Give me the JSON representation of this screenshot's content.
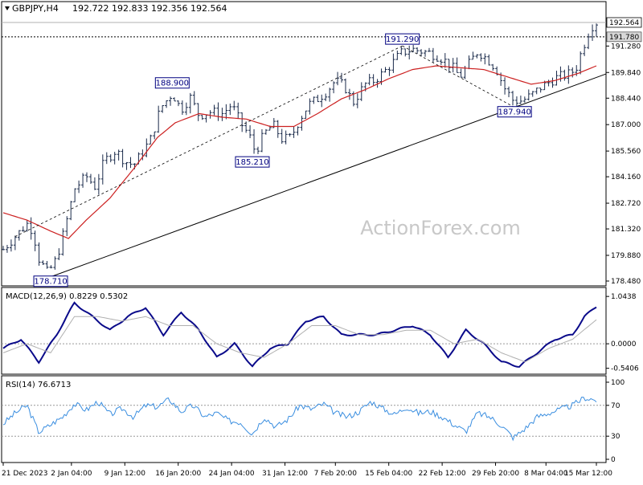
{
  "header": {
    "symbol": "GBPJPY,H4",
    "ohlc": "192.722 192.833 192.356 192.564"
  },
  "watermark": "ActionForex.com",
  "colors": {
    "bar": "#1a2a4a",
    "ma": "#cc2020",
    "macd": "#0a0a8a",
    "signal": "#b0b0b0",
    "rsi": "#3a8ee0",
    "price_tag_bg": "#ffffff",
    "level_tag_bg": "#d8d8d8"
  },
  "chart_data": [
    {
      "type": "candlestick",
      "title": "GBPJPY,H4",
      "ylim": [
        178.48,
        193.35
      ],
      "yticks": [
        {
          "value": 191.28,
          "label": "191.280"
        },
        {
          "value": 189.84,
          "label": "189.840"
        },
        {
          "value": 188.44,
          "label": "188.440"
        },
        {
          "value": 187.0,
          "label": "187.000"
        },
        {
          "value": 185.56,
          "label": "185.560"
        },
        {
          "value": 184.16,
          "label": "184.160"
        },
        {
          "value": 182.72,
          "label": "182.720"
        },
        {
          "value": 181.32,
          "label": "181.320"
        },
        {
          "value": 179.88,
          "label": "179.880"
        },
        {
          "value": 178.48,
          "label": "178.480"
        }
      ],
      "last_price": {
        "value": 192.564,
        "label": "192.564"
      },
      "resistance": {
        "value": 191.78,
        "label": "191.780"
      },
      "annotations": [
        {
          "label": "191.290",
          "value": 191.29,
          "index": 0.673
        },
        {
          "label": "188.900",
          "value": 188.9,
          "index": 0.285
        },
        {
          "label": "185.210",
          "value": 185.21,
          "index": 0.42
        },
        {
          "label": "187.940",
          "value": 187.94,
          "index": 0.862
        },
        {
          "label": "178.710",
          "value": 178.71,
          "index": 0.08
        }
      ],
      "close_path": [
        [
          0,
          180.2
        ],
        [
          0.02,
          180.9
        ],
        [
          0.04,
          181.6
        ],
        [
          0.05,
          181.2
        ],
        [
          0.06,
          179.7
        ],
        [
          0.075,
          178.9
        ],
        [
          0.09,
          179.7
        ],
        [
          0.105,
          181.5
        ],
        [
          0.12,
          183.5
        ],
        [
          0.14,
          184.2
        ],
        [
          0.155,
          183.6
        ],
        [
          0.17,
          185.0
        ],
        [
          0.19,
          185.6
        ],
        [
          0.205,
          185.0
        ],
        [
          0.22,
          184.8
        ],
        [
          0.235,
          185.5
        ],
        [
          0.25,
          186.3
        ],
        [
          0.265,
          187.9
        ],
        [
          0.285,
          188.7
        ],
        [
          0.3,
          187.8
        ],
        [
          0.315,
          188.5
        ],
        [
          0.33,
          187.5
        ],
        [
          0.35,
          187.7
        ],
        [
          0.37,
          187.6
        ],
        [
          0.385,
          188.1
        ],
        [
          0.4,
          187.1
        ],
        [
          0.415,
          186.4
        ],
        [
          0.425,
          185.5
        ],
        [
          0.44,
          186.5
        ],
        [
          0.455,
          187.0
        ],
        [
          0.47,
          186.2
        ],
        [
          0.485,
          186.3
        ],
        [
          0.5,
          187.3
        ],
        [
          0.515,
          188.1
        ],
        [
          0.53,
          188.4
        ],
        [
          0.545,
          188.8
        ],
        [
          0.56,
          189.4
        ],
        [
          0.575,
          189.1
        ],
        [
          0.59,
          188.2
        ],
        [
          0.61,
          189.2
        ],
        [
          0.625,
          189.4
        ],
        [
          0.64,
          189.8
        ],
        [
          0.655,
          190.3
        ],
        [
          0.67,
          190.9
        ],
        [
          0.69,
          191.1
        ],
        [
          0.705,
          191.0
        ],
        [
          0.72,
          190.9
        ],
        [
          0.74,
          190.6
        ],
        [
          0.755,
          190.2
        ],
        [
          0.77,
          189.6
        ],
        [
          0.785,
          190.3
        ],
        [
          0.8,
          191.0
        ],
        [
          0.815,
          190.6
        ],
        [
          0.83,
          190.1
        ],
        [
          0.845,
          189.0
        ],
        [
          0.86,
          188.3
        ],
        [
          0.875,
          188.3
        ],
        [
          0.89,
          188.6
        ],
        [
          0.905,
          189.0
        ],
        [
          0.92,
          189.3
        ],
        [
          0.935,
          189.6
        ],
        [
          0.95,
          189.7
        ],
        [
          0.965,
          190.0
        ],
        [
          0.975,
          191.0
        ],
        [
          0.99,
          192.3
        ],
        [
          1.0,
          192.564
        ]
      ],
      "ma_path": [
        [
          0,
          182.2
        ],
        [
          0.04,
          181.8
        ],
        [
          0.08,
          181.2
        ],
        [
          0.11,
          180.8
        ],
        [
          0.14,
          181.8
        ],
        [
          0.18,
          183.0
        ],
        [
          0.22,
          184.6
        ],
        [
          0.26,
          186.3
        ],
        [
          0.29,
          187.1
        ],
        [
          0.33,
          187.6
        ],
        [
          0.37,
          187.4
        ],
        [
          0.41,
          187.3
        ],
        [
          0.45,
          186.9
        ],
        [
          0.49,
          186.9
        ],
        [
          0.53,
          187.6
        ],
        [
          0.57,
          188.4
        ],
        [
          0.61,
          188.9
        ],
        [
          0.65,
          189.5
        ],
        [
          0.69,
          190.0
        ],
        [
          0.73,
          190.2
        ],
        [
          0.77,
          190.1
        ],
        [
          0.81,
          190.0
        ],
        [
          0.85,
          189.6
        ],
        [
          0.89,
          189.2
        ],
        [
          0.93,
          189.4
        ],
        [
          0.97,
          189.8
        ],
        [
          1.0,
          190.2
        ]
      ],
      "x_axis": {
        "labels": [
          {
            "label": "21 Dec 2023",
            "index": 0.0
          },
          {
            "label": "2 Jan 04:00",
            "index": 0.115
          },
          {
            "label": "9 Jan 12:00",
            "index": 0.205
          },
          {
            "label": "16 Jan 20:00",
            "index": 0.295
          },
          {
            "label": "24 Jan 04:00",
            "index": 0.385
          },
          {
            "label": "31 Jan 12:00",
            "index": 0.475
          },
          {
            "label": "7 Feb 20:00",
            "index": 0.56
          },
          {
            "label": "15 Feb 04:00",
            "index": 0.65
          },
          {
            "label": "22 Feb 12:00",
            "index": 0.74
          },
          {
            "label": "29 Feb 20:00",
            "index": 0.83
          },
          {
            "label": "8 Mar 04:00",
            "index": 0.915
          },
          {
            "label": "15 Mar 12:00",
            "index": 1.0
          }
        ]
      }
    },
    {
      "type": "line",
      "title": "MACD(12,26,9) 0.8229 0.5302",
      "ylim": [
        -0.6,
        1.1
      ],
      "yticks": [
        {
          "value": 1.0438,
          "label": "1.0438"
        },
        {
          "value": 0.0,
          "label": "0.0000"
        },
        {
          "value": -0.5406,
          "label": "-0.5406"
        }
      ],
      "series": [
        {
          "key": "macd",
          "values": [
            [
              0,
              -0.1
            ],
            [
              0.03,
              0.1
            ],
            [
              0.06,
              -0.4
            ],
            [
              0.09,
              0.2
            ],
            [
              0.12,
              0.9
            ],
            [
              0.15,
              0.6
            ],
            [
              0.18,
              0.3
            ],
            [
              0.21,
              0.6
            ],
            [
              0.24,
              0.8
            ],
            [
              0.27,
              0.2
            ],
            [
              0.3,
              0.7
            ],
            [
              0.33,
              0.3
            ],
            [
              0.36,
              -0.3
            ],
            [
              0.39,
              0.0
            ],
            [
              0.42,
              -0.5
            ],
            [
              0.45,
              -0.1
            ],
            [
              0.48,
              0.0
            ],
            [
              0.51,
              0.5
            ],
            [
              0.54,
              0.6
            ],
            [
              0.57,
              0.2
            ],
            [
              0.6,
              0.2
            ],
            [
              0.63,
              0.2
            ],
            [
              0.66,
              0.3
            ],
            [
              0.69,
              0.4
            ],
            [
              0.72,
              0.2
            ],
            [
              0.75,
              -0.3
            ],
            [
              0.78,
              0.3
            ],
            [
              0.81,
              0.0
            ],
            [
              0.84,
              -0.4
            ],
            [
              0.87,
              -0.5
            ],
            [
              0.9,
              -0.2
            ],
            [
              0.93,
              0.1
            ],
            [
              0.96,
              0.2
            ],
            [
              0.98,
              0.6
            ],
            [
              1.0,
              0.8229
            ]
          ]
        },
        {
          "key": "signal",
          "values": [
            [
              0,
              -0.2
            ],
            [
              0.04,
              0.0
            ],
            [
              0.08,
              -0.2
            ],
            [
              0.12,
              0.6
            ],
            [
              0.16,
              0.6
            ],
            [
              0.2,
              0.5
            ],
            [
              0.24,
              0.6
            ],
            [
              0.28,
              0.4
            ],
            [
              0.32,
              0.4
            ],
            [
              0.36,
              0.0
            ],
            [
              0.4,
              -0.2
            ],
            [
              0.44,
              -0.3
            ],
            [
              0.48,
              0.0
            ],
            [
              0.52,
              0.4
            ],
            [
              0.56,
              0.4
            ],
            [
              0.6,
              0.2
            ],
            [
              0.64,
              0.2
            ],
            [
              0.68,
              0.3
            ],
            [
              0.72,
              0.3
            ],
            [
              0.76,
              0.0
            ],
            [
              0.8,
              0.1
            ],
            [
              0.84,
              -0.2
            ],
            [
              0.88,
              -0.4
            ],
            [
              0.92,
              -0.1
            ],
            [
              0.96,
              0.1
            ],
            [
              1.0,
              0.5302
            ]
          ]
        }
      ]
    },
    {
      "type": "line",
      "title": "RSI(14) 76.6713",
      "ylim": [
        0,
        100
      ],
      "yticks": [
        {
          "value": 100,
          "label": "100"
        },
        {
          "value": 70,
          "label": "70"
        },
        {
          "value": 30,
          "label": "30"
        },
        {
          "value": 0,
          "label": "0"
        }
      ],
      "series": [
        {
          "key": "rsi",
          "values": [
            [
              0,
              46
            ],
            [
              0.02,
              60
            ],
            [
              0.04,
              70
            ],
            [
              0.06,
              35
            ],
            [
              0.08,
              45
            ],
            [
              0.1,
              55
            ],
            [
              0.12,
              72
            ],
            [
              0.14,
              64
            ],
            [
              0.16,
              75
            ],
            [
              0.18,
              58
            ],
            [
              0.2,
              66
            ],
            [
              0.22,
              55
            ],
            [
              0.24,
              70
            ],
            [
              0.26,
              68
            ],
            [
              0.28,
              78
            ],
            [
              0.3,
              62
            ],
            [
              0.32,
              70
            ],
            [
              0.34,
              55
            ],
            [
              0.36,
              60
            ],
            [
              0.38,
              50
            ],
            [
              0.4,
              48
            ],
            [
              0.42,
              33
            ],
            [
              0.44,
              55
            ],
            [
              0.46,
              42
            ],
            [
              0.48,
              52
            ],
            [
              0.5,
              70
            ],
            [
              0.52,
              65
            ],
            [
              0.54,
              72
            ],
            [
              0.56,
              60
            ],
            [
              0.58,
              55
            ],
            [
              0.6,
              62
            ],
            [
              0.62,
              75
            ],
            [
              0.64,
              66
            ],
            [
              0.66,
              58
            ],
            [
              0.68,
              68
            ],
            [
              0.7,
              60
            ],
            [
              0.72,
              62
            ],
            [
              0.74,
              55
            ],
            [
              0.76,
              45
            ],
            [
              0.78,
              36
            ],
            [
              0.8,
              60
            ],
            [
              0.82,
              55
            ],
            [
              0.84,
              44
            ],
            [
              0.86,
              28
            ],
            [
              0.88,
              40
            ],
            [
              0.9,
              55
            ],
            [
              0.92,
              60
            ],
            [
              0.94,
              65
            ],
            [
              0.96,
              70
            ],
            [
              0.98,
              80
            ],
            [
              1.0,
              76.6713
            ]
          ]
        }
      ]
    }
  ]
}
